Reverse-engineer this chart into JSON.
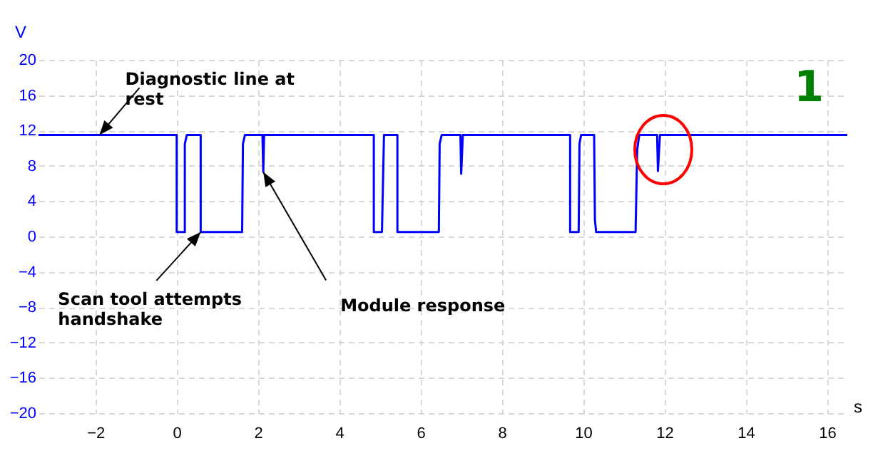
{
  "chart_data": {
    "type": "line",
    "xlabel": "s",
    "ylabel": "V",
    "x": [
      -3.4,
      0.0,
      0.0,
      0.2,
      0.2,
      0.25,
      0.59,
      0.59,
      1.61,
      1.63,
      1.68,
      2.11,
      2.13,
      2.15,
      4.85,
      4.85,
      5.05,
      5.1,
      5.43,
      5.43,
      6.45,
      6.47,
      6.52,
      6.98,
      7.0,
      7.04,
      9.68,
      9.68,
      9.89,
      9.91,
      9.95,
      10.27,
      10.29,
      10.32,
      11.29,
      11.33,
      11.38,
      11.82,
      11.84,
      11.89,
      16.5
    ],
    "series": [
      {
        "color": "#0000ff",
        "values": [
          11.5,
          11.5,
          0.5,
          0.5,
          10.5,
          11.5,
          11.5,
          0.5,
          0.5,
          10.5,
          11.5,
          11.5,
          7.3,
          11.5,
          11.5,
          0.5,
          0.5,
          11.5,
          11.5,
          0.5,
          0.5,
          10.5,
          11.5,
          11.5,
          7.1,
          11.5,
          11.5,
          0.5,
          0.5,
          10.5,
          11.5,
          11.5,
          1.9,
          0.5,
          0.5,
          9.8,
          11.5,
          11.5,
          7.4,
          11.5,
          11.5
        ]
      }
    ],
    "xlim": [
      -3.4,
      16.5
    ],
    "ylim": [
      -20,
      20
    ],
    "xticks": [
      -2,
      0,
      2,
      4,
      6,
      8,
      10,
      12,
      14,
      16
    ],
    "yticks": [
      -20,
      -16,
      -12,
      -8,
      -4,
      0,
      4,
      8,
      12,
      16,
      20
    ],
    "grid": true,
    "annotations": [
      {
        "text": "Diagnostic line at rest",
        "x": -1.9,
        "y": 11.5
      },
      {
        "text": "Scan tool attempts handshake",
        "x": 0.59,
        "y": 0.5
      },
      {
        "text": "Module response",
        "x": 2.13,
        "y": 7.3
      },
      "1"
    ]
  }
}
